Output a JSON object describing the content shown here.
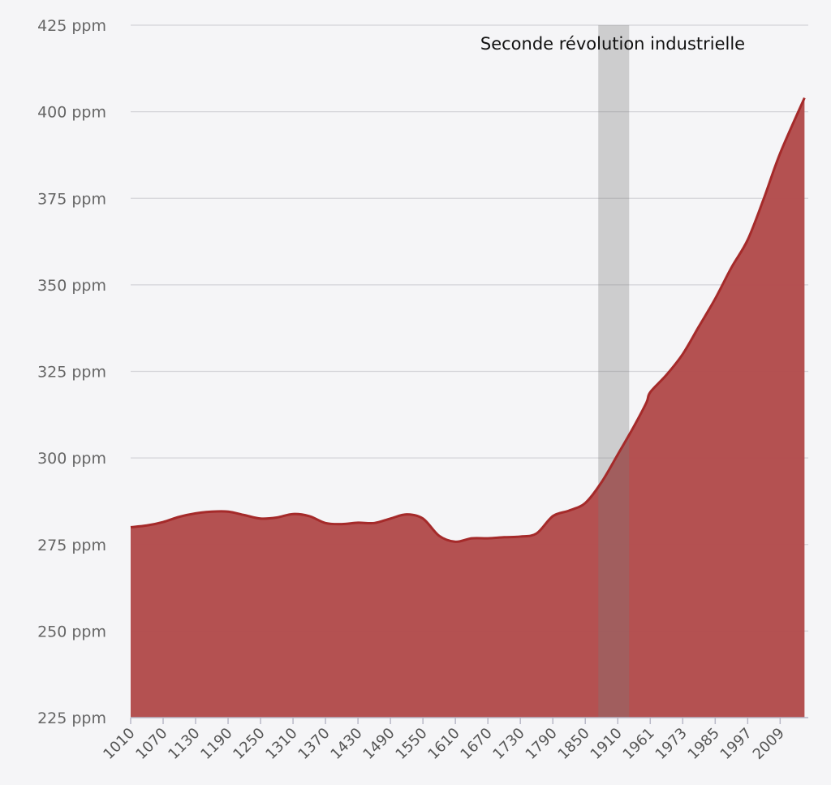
{
  "chart_data": {
    "type": "area",
    "ylim": [
      225,
      425
    ],
    "y_ticks": [
      "225 ppm",
      "250 ppm",
      "275 ppm",
      "300 ppm",
      "325 ppm",
      "350 ppm",
      "375 ppm",
      "400 ppm",
      "425 ppm"
    ],
    "x_tick_labels": [
      "1010",
      "1070",
      "1130",
      "1190",
      "1250",
      "1310",
      "1370",
      "1430",
      "1490",
      "1550",
      "1610",
      "1670",
      "1730",
      "1790",
      "1850",
      "1910",
      "1961",
      "1973",
      "1985",
      "1997",
      "2009"
    ],
    "grid": true,
    "colors": {
      "fill": "#b34e4e",
      "line": "#a52a2a",
      "band": "#c8c8c8",
      "grid": "#d4d4d8",
      "background": "#f5f5f7"
    },
    "annotation": {
      "label": "Seconde révolution industrielle",
      "from": "1850",
      "to": "1910"
    },
    "series": [
      {
        "points": [
          [
            "1010",
            280
          ],
          [
            "1040",
            280.5
          ],
          [
            "1070",
            281.5
          ],
          [
            "1100",
            283
          ],
          [
            "1130",
            284
          ],
          [
            "1160",
            284.5
          ],
          [
            "1190",
            284.5
          ],
          [
            "1220",
            283.5
          ],
          [
            "1250",
            282.5
          ],
          [
            "1280",
            282.8
          ],
          [
            "1310",
            283.8
          ],
          [
            "1340",
            283.2
          ],
          [
            "1370",
            281.2
          ],
          [
            "1400",
            280.9
          ],
          [
            "1430",
            281.3
          ],
          [
            "1460",
            281.2
          ],
          [
            "1490",
            282.5
          ],
          [
            "1520",
            283.7
          ],
          [
            "1550",
            282.5
          ],
          [
            "1580",
            277.5
          ],
          [
            "1610",
            275.8
          ],
          [
            "1640",
            276.8
          ],
          [
            "1670",
            276.8
          ],
          [
            "1700",
            277.1
          ],
          [
            "1730",
            277.3
          ],
          [
            "1760",
            278.2
          ],
          [
            "1790",
            283.2
          ],
          [
            "1820",
            284.8
          ],
          [
            "1850",
            287
          ],
          [
            "1880",
            293
          ],
          [
            "1910",
            301
          ],
          [
            "1935",
            309
          ],
          [
            "1955",
            316
          ],
          [
            "1961",
            319
          ],
          [
            "1967",
            324
          ],
          [
            "1973",
            330
          ],
          [
            "1979",
            338
          ],
          [
            "1985",
            346
          ],
          [
            "1991",
            355
          ],
          [
            "1997",
            363
          ],
          [
            "2003",
            375
          ],
          [
            "2009",
            388
          ],
          [
            "2018",
            404
          ]
        ]
      }
    ]
  }
}
